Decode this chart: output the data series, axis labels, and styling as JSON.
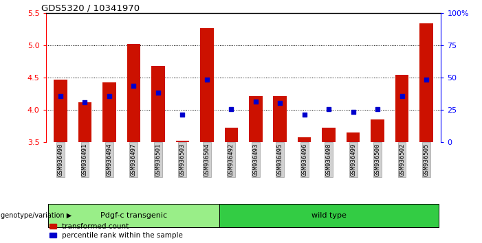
{
  "title": "GDS5320 / 10341970",
  "samples": [
    "GSM936490",
    "GSM936491",
    "GSM936494",
    "GSM936497",
    "GSM936501",
    "GSM936503",
    "GSM936504",
    "GSM936492",
    "GSM936493",
    "GSM936495",
    "GSM936496",
    "GSM936498",
    "GSM936499",
    "GSM936500",
    "GSM936502",
    "GSM936505"
  ],
  "bar_values": [
    4.47,
    4.12,
    4.43,
    5.02,
    4.68,
    3.52,
    5.27,
    3.72,
    4.22,
    4.22,
    3.58,
    3.72,
    3.65,
    3.85,
    4.55,
    5.35
  ],
  "dot_values": [
    4.21,
    4.12,
    4.21,
    4.37,
    4.27,
    3.93,
    4.47,
    4.01,
    4.13,
    4.11,
    3.93,
    4.01,
    3.97,
    4.01,
    4.22,
    4.47
  ],
  "ylim_left": [
    3.5,
    5.5
  ],
  "ylim_right": [
    0,
    100
  ],
  "yticks_left": [
    3.5,
    4.0,
    4.5,
    5.0,
    5.5
  ],
  "yticks_right": [
    0,
    25,
    50,
    75,
    100
  ],
  "ytick_labels_right": [
    "0",
    "25",
    "50",
    "75",
    "100%"
  ],
  "bar_color": "#cc1100",
  "dot_color": "#0000cc",
  "group1_label": "Pdgf-c transgenic",
  "group2_label": "wild type",
  "group1_count": 7,
  "group2_count": 9,
  "group1_color": "#99ee88",
  "group2_color": "#33cc44",
  "genotype_label": "genotype/variation",
  "legend_bar": "transformed count",
  "legend_dot": "percentile rank within the sample",
  "bg_color": "#ffffff",
  "plot_bg": "#ffffff",
  "tick_label_bg": "#d0d0d0",
  "gridline_ticks": [
    4.0,
    4.5,
    5.0
  ]
}
